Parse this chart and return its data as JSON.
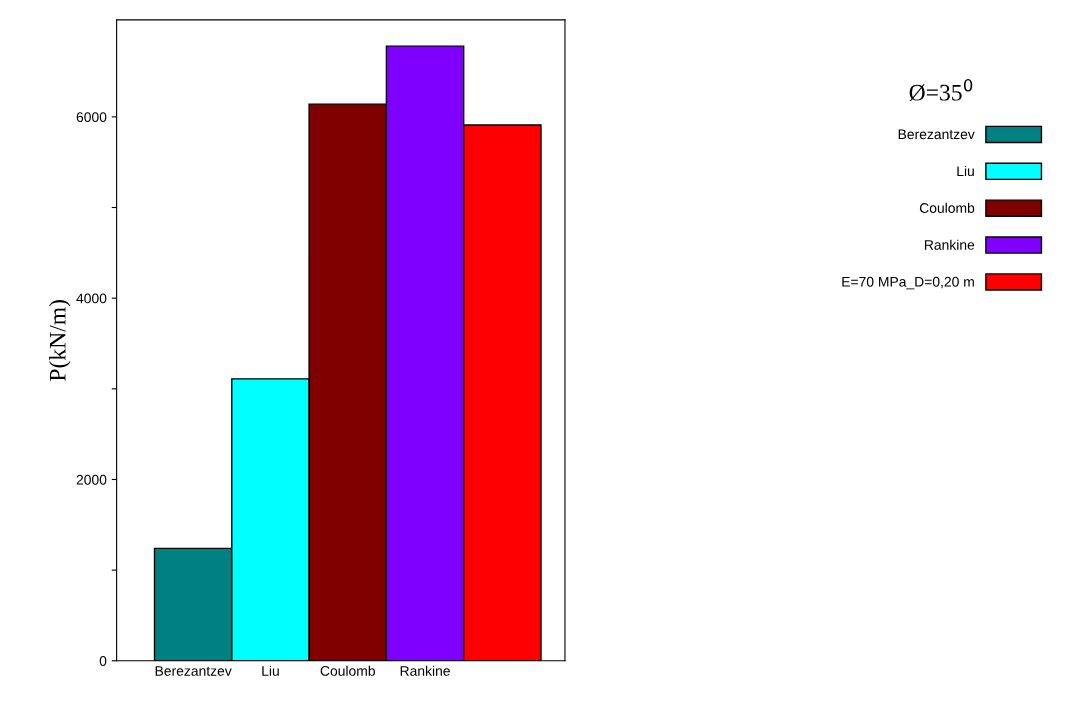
{
  "chart_data": {
    "type": "bar",
    "categories": [
      "Berezantzev",
      "Liu",
      "Coulomb",
      "Rankine",
      null
    ],
    "series": [
      {
        "name": "Berezantzev",
        "color": "#008080",
        "values": [
          1240,
          null,
          null,
          null,
          null
        ]
      },
      {
        "name": "Liu",
        "color": "#00ffff",
        "values": [
          null,
          3110,
          null,
          null,
          null
        ]
      },
      {
        "name": "Coulomb",
        "color": "#800000",
        "values": [
          null,
          null,
          6140,
          null,
          null
        ]
      },
      {
        "name": "Rankine",
        "color": "#8000ff",
        "values": [
          null,
          null,
          null,
          6780,
          null
        ]
      },
      {
        "name": "E=70 MPa_D=0,20 m",
        "color": "#ff0000",
        "values": [
          null,
          null,
          null,
          null,
          5910
        ]
      }
    ],
    "ylabel": "P(kN/m)",
    "legend_title": "Ø=35$^{0}$",
    "ylim": [
      0,
      7070
    ],
    "yticks": [
      0,
      {
        "value": 1000,
        "label": null
      },
      2000,
      {
        "value": 3000,
        "label": null
      },
      4000,
      {
        "value": 5000,
        "label": null
      },
      6000
    ],
    "grid": false,
    "legend": "right"
  }
}
